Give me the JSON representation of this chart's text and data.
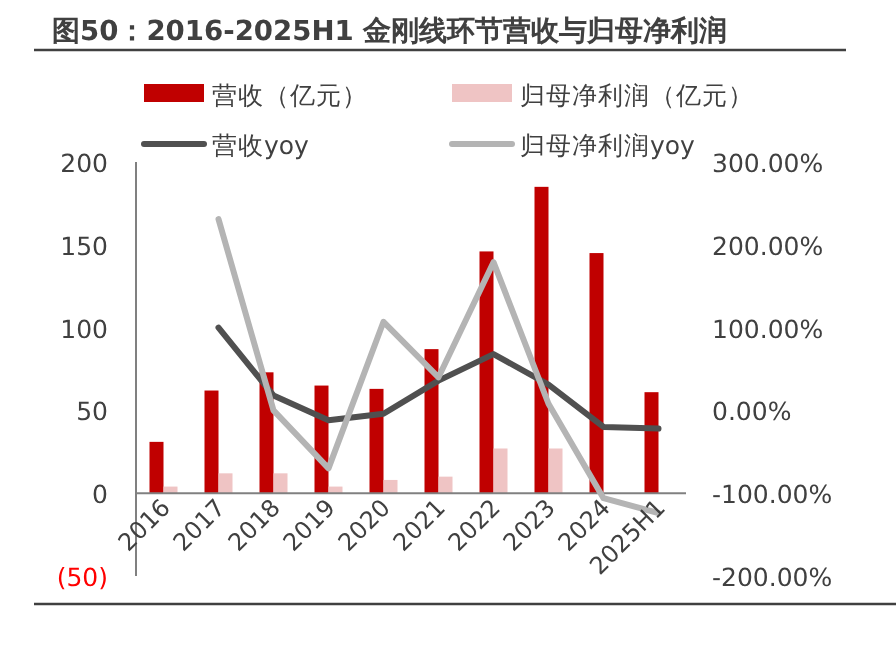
{
  "chart_data": {
    "type": "bar",
    "title": "图50：2016-2025H1 金刚线环节营收与归母净利润",
    "categories": [
      "2016",
      "2017",
      "2018",
      "2019",
      "2020",
      "2021",
      "2022",
      "2023",
      "2024",
      "2025H1"
    ],
    "series": [
      {
        "name": "营收（亿元）",
        "color": "#c00000",
        "values": [
          31,
          62,
          73,
          65,
          63,
          87,
          146,
          185,
          145,
          61
        ]
      },
      {
        "name": "归母净利润（亿元）",
        "color": "#efc4c4",
        "values": [
          4,
          12,
          12,
          4,
          8,
          10,
          27,
          27,
          null,
          null
        ]
      },
      {
        "name": "营收yoy",
        "type": "line",
        "axis": "y2",
        "color": "#505050",
        "values": [
          null,
          100,
          18,
          -12,
          -4,
          36,
          68,
          31,
          -20,
          -22
        ]
      },
      {
        "name": "归母净利润yoy",
        "type": "line",
        "axis": "y2",
        "color": "#b4b4b4",
        "values": [
          null,
          231,
          0,
          -70,
          107,
          40,
          179,
          8,
          -106,
          -124
        ]
      }
    ],
    "ylim": [
      -50,
      200
    ],
    "yticks": [
      {
        "value": -50,
        "label": "(50)"
      },
      0,
      50,
      100,
      150,
      200
    ],
    "y2lim": [
      -200,
      300
    ],
    "y2ticks": [
      {
        "value": -200,
        "label": "-200.00%"
      },
      {
        "value": -100,
        "label": "-100.00%"
      },
      {
        "value": 0,
        "label": "0.00%"
      },
      {
        "value": 100,
        "label": "100.00%"
      },
      {
        "value": 200,
        "label": "200.00%"
      },
      {
        "value": 300,
        "label": "300.00%"
      }
    ],
    "legend": "top",
    "grid": false,
    "marker": "none",
    "line_style": "solid"
  }
}
